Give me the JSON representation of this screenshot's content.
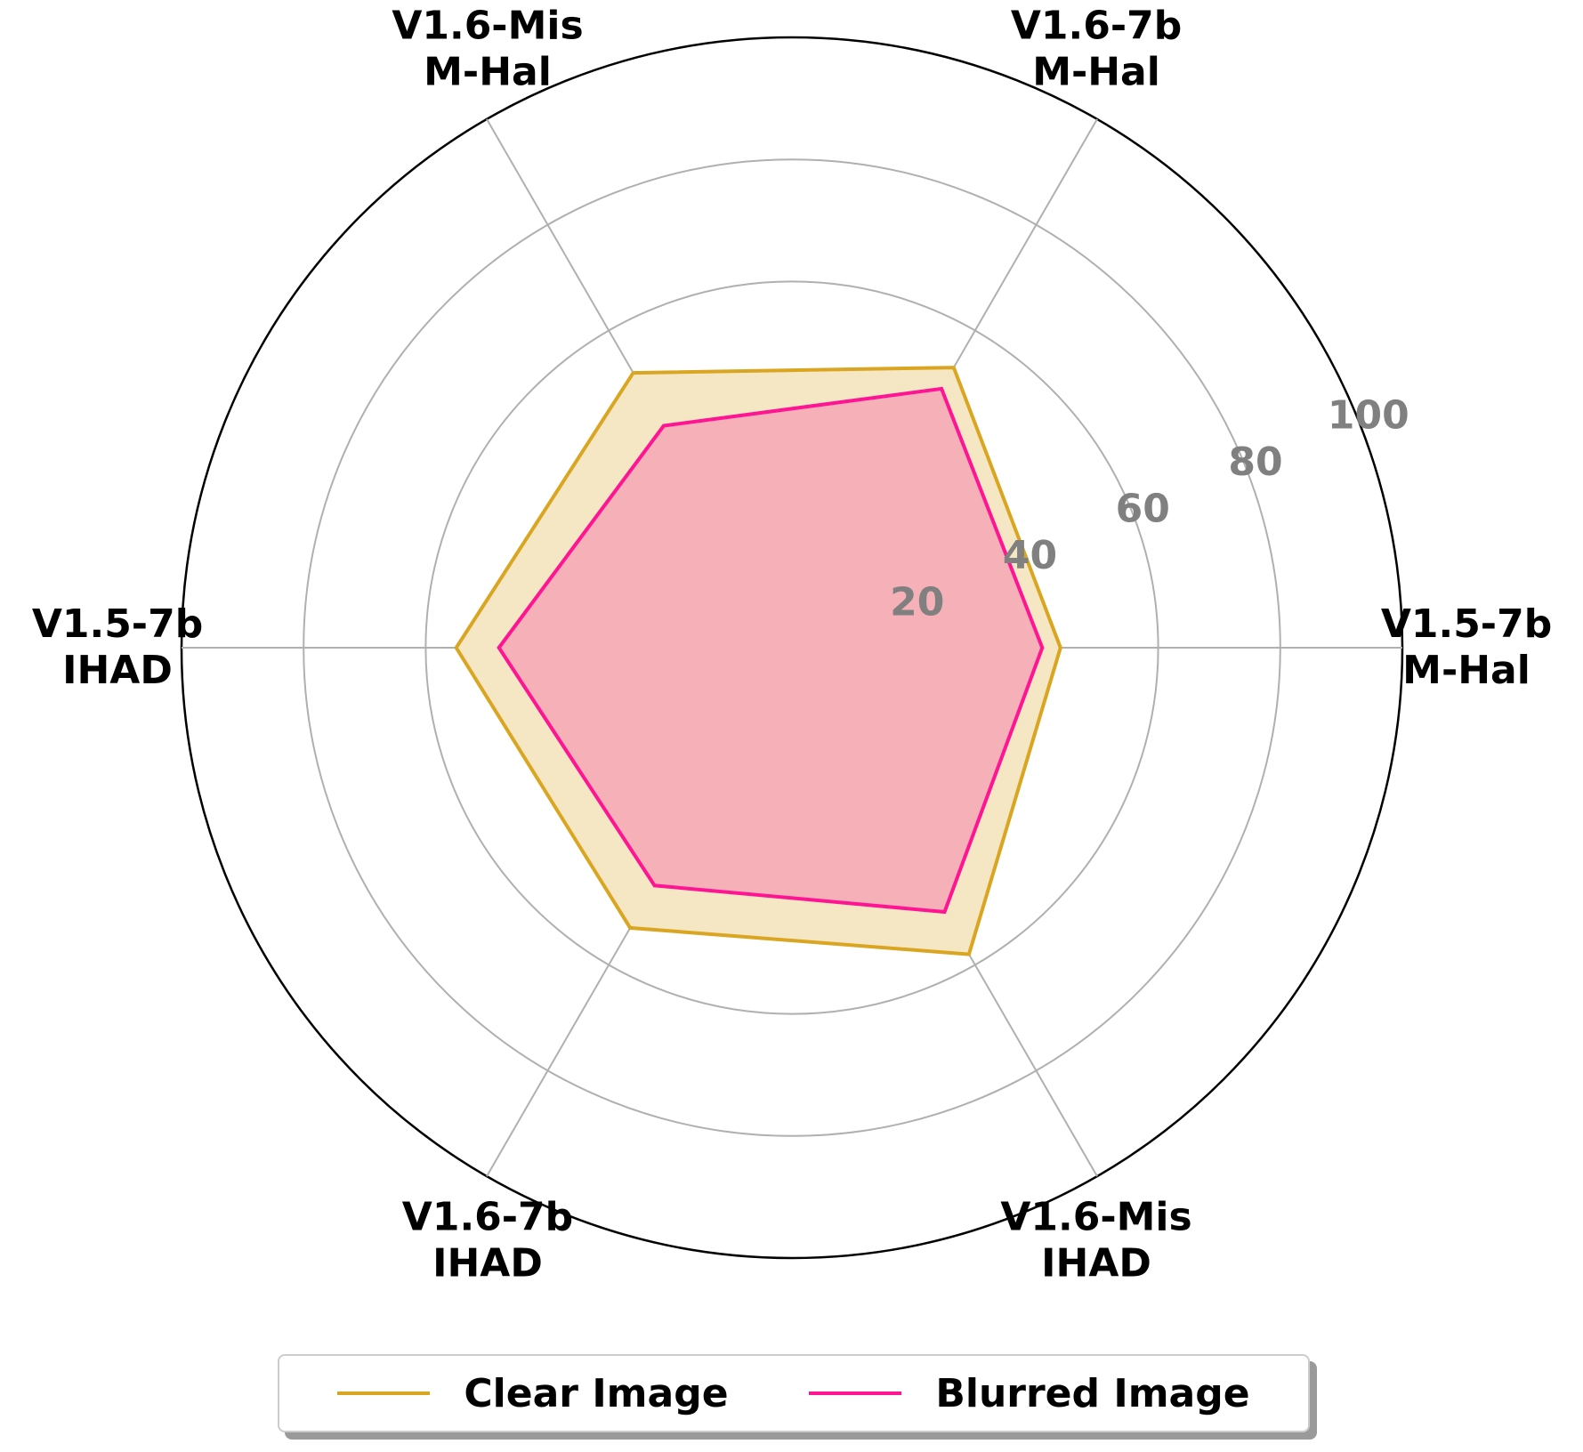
{
  "chart_data": {
    "type": "radar",
    "categories": [
      [
        "V1.5-7b",
        "M-Hal"
      ],
      [
        "V1.6-7b",
        "M-Hal"
      ],
      [
        "V1.6-Mis",
        "M-Hal"
      ],
      [
        "V1.5-7b",
        "IHAD"
      ],
      [
        "V1.6-7b",
        "IHAD"
      ],
      [
        "V1.6-Mis",
        "IHAD"
      ]
    ],
    "r_ticks": [
      "20",
      "40",
      "60",
      "80",
      "100"
    ],
    "r_tick_values": [
      20,
      40,
      60,
      80,
      100
    ],
    "rlim": [
      0,
      100
    ],
    "grid": true,
    "legend_placement": "bottom",
    "series": [
      {
        "name": "Clear Image",
        "values": [
          44,
          53,
          52,
          55,
          53,
          58
        ],
        "color": "#DAA520",
        "fill": "#F5E6C4"
      },
      {
        "name": "Blurred Image",
        "values": [
          41,
          49,
          42,
          48,
          45,
          50
        ],
        "color": "#FF1493",
        "fill": "#F5B0B8"
      }
    ]
  }
}
